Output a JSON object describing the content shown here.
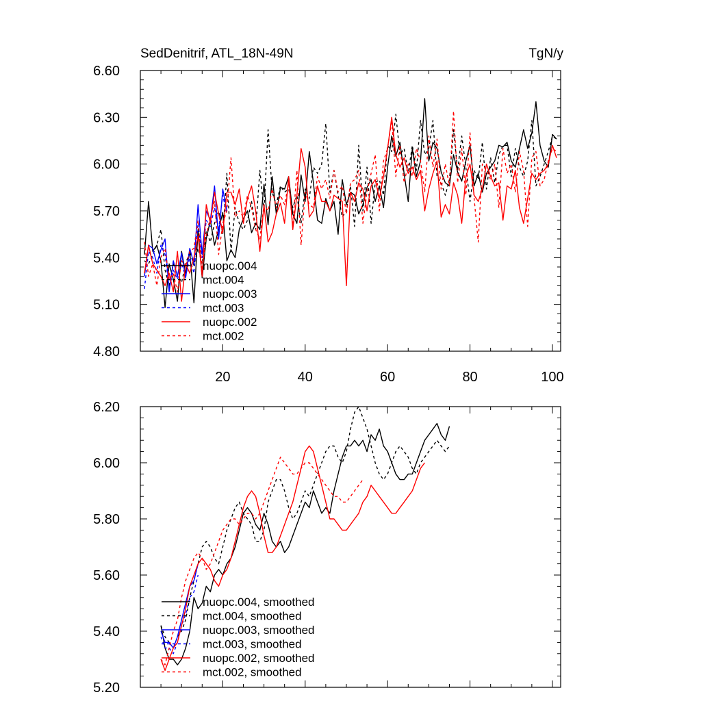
{
  "chart_data": [
    {
      "type": "line",
      "title_left": "SedDenitrif, ATL_18N-49N",
      "title_right": "TgN/y",
      "xlim": [
        0,
        102
      ],
      "ylim": [
        4.8,
        6.6
      ],
      "xticks": [
        20,
        40,
        60,
        80,
        100
      ],
      "xtick_labels": [
        "20",
        "40",
        "60",
        "80",
        "100"
      ],
      "yticks": [
        4.8,
        5.1,
        5.4,
        5.7,
        6.0,
        6.3,
        6.6
      ],
      "ytick_labels": [
        "4.80",
        "5.10",
        "5.40",
        "5.70",
        "6.00",
        "6.30",
        "6.60"
      ],
      "legend_position": "bottom-left",
      "series": [
        {
          "name": "nuopc.004",
          "color": "#000000",
          "dash": "solid",
          "x_start": 1,
          "values": [
            5.42,
            5.76,
            5.44,
            5.48,
            5.38,
            5.08,
            5.36,
            5.26,
            5.12,
            5.44,
            5.3,
            5.44,
            5.11,
            5.58,
            5.27,
            5.52,
            5.64,
            5.48,
            5.58,
            5.69,
            5.38,
            5.45,
            5.4,
            5.58,
            5.65,
            5.7,
            5.56,
            5.62,
            5.58,
            5.87,
            5.61,
            5.92,
            5.68,
            5.85,
            5.84,
            5.92,
            5.68,
            5.62,
            5.93,
            5.76,
            6.08,
            5.88,
            5.64,
            5.62,
            5.78,
            5.7,
            5.76,
            5.55,
            5.9,
            5.74,
            5.82,
            5.8,
            5.68,
            5.74,
            5.85,
            5.9,
            5.76,
            5.86,
            5.72,
            5.98,
            6.18,
            6.05,
            6.14,
            5.94,
            5.76,
            6.1,
            5.92,
            6.02,
            6.42,
            6.02,
            6.14,
            6.1,
            5.95,
            5.88,
            5.86,
            6.06,
            5.95,
            5.89,
            6.02,
            6.12,
            5.86,
            5.94,
            5.82,
            5.94,
            5.98,
            6.02,
            6.12,
            6.11,
            6.14,
            6.02,
            5.98,
            6.1,
            6.22,
            6.1,
            6.2,
            6.4,
            6.12,
            6.02,
            5.98,
            6.19,
            6.16
          ]
        },
        {
          "name": "mct.004",
          "color": "#000000",
          "dash": "4,4",
          "x_start": 1,
          "values": [
            5.38,
            5.36,
            5.42,
            5.48,
            5.58,
            5.32,
            5.22,
            5.36,
            5.28,
            5.24,
            5.36,
            5.44,
            5.35,
            5.46,
            5.36,
            5.57,
            5.5,
            5.62,
            5.7,
            5.55,
            5.94,
            5.44,
            5.72,
            5.62,
            5.58,
            5.64,
            5.76,
            5.58,
            5.96,
            5.7,
            6.22,
            5.82,
            5.74,
            5.86,
            5.82,
            5.84,
            5.72,
            5.8,
            5.62,
            5.84,
            5.78,
            5.98,
            5.94,
            6.0,
            6.26,
            5.82,
            5.96,
            5.8,
            5.66,
            5.7,
            5.86,
            5.6,
            6.12,
            5.7,
            5.98,
            5.62,
            5.88,
            5.9,
            5.8,
            6.12,
            6.08,
            6.32,
            6.06,
            6.1,
            5.94,
            6.12,
            5.96,
            6.28,
            6.06,
            6.1,
            6.28,
            5.92,
            5.88,
            5.8,
            5.9,
            6.22,
            5.96,
            6.18,
            5.98,
            5.76,
            5.96,
            5.9,
            6.14,
            5.84,
            6.04,
            5.88,
            6.06,
            6.12,
            6.12,
            5.92,
            6.1,
            5.98,
            5.92,
            6.02,
            6.28,
            5.86,
            5.92,
            6.0,
            6.08,
            6.18,
            6.16
          ]
        },
        {
          "name": "nuopc.003",
          "color": "#0000ff",
          "dash": "solid",
          "x_start": 1,
          "values": [
            5.28,
            5.48,
            5.46,
            5.36,
            5.45,
            5.52,
            5.18,
            5.38,
            5.28,
            5.43,
            5.27,
            5.46,
            5.36,
            5.74,
            5.42,
            5.7,
            5.64,
            5.86,
            5.52,
            5.84,
            5.7
          ]
        },
        {
          "name": "mct.003",
          "color": "#0000ff",
          "dash": "4,4",
          "x_start": 1,
          "values": [
            5.2,
            5.44,
            5.4,
            5.3,
            5.48,
            5.42,
            5.2,
            5.32,
            5.26,
            5.36,
            5.28,
            5.4,
            5.3,
            5.62,
            5.4,
            5.64,
            5.6,
            5.72,
            5.58,
            5.8,
            5.68
          ]
        },
        {
          "name": "nuopc.002",
          "color": "#ff0000",
          "dash": "solid",
          "x_start": 1,
          "values": [
            5.3,
            5.48,
            5.36,
            5.32,
            5.28,
            5.22,
            5.3,
            5.18,
            5.44,
            5.12,
            5.36,
            5.3,
            5.4,
            5.54,
            5.28,
            5.74,
            5.62,
            5.82,
            5.68,
            5.56,
            5.82,
            5.82,
            5.74,
            5.84,
            5.62,
            5.78,
            5.86,
            5.7,
            5.44,
            5.74,
            5.5,
            5.56,
            5.68,
            5.75,
            5.62,
            5.92,
            5.58,
            5.8,
            6.1,
            5.98,
            5.66,
            5.7,
            5.86,
            5.76,
            5.76,
            5.7,
            5.8,
            5.78,
            5.76,
            5.22,
            5.82,
            5.76,
            5.88,
            5.84,
            5.7,
            5.86,
            5.9,
            5.78,
            5.92,
            6.1,
            6.3,
            6.06,
            5.98,
            6.04,
            5.94,
            5.98,
            5.9,
            5.96,
            5.7,
            5.84,
            5.94,
            6.02,
            5.66,
            5.74,
            5.68,
            5.88,
            5.8,
            5.62,
            5.92,
            6.0,
            5.8,
            5.76,
            5.84,
            6.0,
            5.92,
            5.86,
            5.88,
            5.64,
            5.86,
            5.84,
            5.96,
            5.72,
            5.62,
            5.78,
            5.94,
            5.9,
            5.94,
            5.96,
            6.0,
            6.12,
            6.04
          ]
        },
        {
          "name": "mct.002",
          "color": "#ff0000",
          "dash": "4,4",
          "x_start": 1,
          "values": [
            5.5,
            5.28,
            5.36,
            5.22,
            5.4,
            5.46,
            5.26,
            5.3,
            5.18,
            5.38,
            5.34,
            5.44,
            5.46,
            5.64,
            5.32,
            5.54,
            5.66,
            5.76,
            5.42,
            5.62,
            5.7,
            6.04,
            5.66,
            5.7,
            5.66,
            5.8,
            5.72,
            5.58,
            5.52,
            5.74,
            5.7,
            5.84,
            5.72,
            5.8,
            5.74,
            5.88,
            5.6,
            5.96,
            5.48,
            5.82,
            5.74,
            5.72,
            5.92,
            5.84,
            5.9,
            5.78,
            5.96,
            5.82,
            5.86,
            5.68,
            5.88,
            5.9,
            5.96,
            5.62,
            5.82,
            5.94,
            6.06,
            5.7,
            6.02,
            6.1,
            6.28,
            5.92,
            6.12,
            5.88,
            6.0,
            5.92,
            6.1,
            6.02,
            5.82,
            6.18,
            5.98,
            6.16,
            5.84,
            6.0,
            5.86,
            6.34,
            5.88,
            6.1,
            5.8,
            6.2,
            5.78,
            5.5,
            6.0,
            5.96,
            5.9,
            6.0,
            5.72,
            6.1,
            5.94,
            6.0,
            5.82,
            6.08,
            5.96,
            5.6,
            6.04,
            6.08,
            5.86,
            5.9,
            6.02,
            6.1,
            6.08
          ]
        }
      ]
    },
    {
      "type": "line",
      "xlim": [
        0,
        102
      ],
      "ylim": [
        5.2,
        6.2
      ],
      "yticks": [
        5.2,
        5.4,
        5.6,
        5.8,
        6.0,
        6.2
      ],
      "ytick_labels": [
        "5.20",
        "5.40",
        "5.60",
        "5.80",
        "6.00",
        "6.20"
      ],
      "legend_position": "bottom-left",
      "series": [
        {
          "name": "nuopc.004, smoothed",
          "color": "#000000",
          "dash": "solid",
          "x_start": 5,
          "values": [
            5.42,
            5.34,
            5.3,
            5.3,
            5.28,
            5.3,
            5.34,
            5.4,
            5.52,
            5.48,
            5.5,
            5.56,
            5.54,
            5.6,
            5.62,
            5.6,
            5.64,
            5.66,
            5.7,
            5.76,
            5.82,
            5.84,
            5.82,
            5.78,
            5.76,
            5.82,
            5.78,
            5.72,
            5.7,
            5.72,
            5.68,
            5.7,
            5.74,
            5.78,
            5.82,
            5.86,
            5.84,
            5.9,
            5.86,
            5.82,
            5.84,
            5.82,
            5.9,
            5.96,
            6.02,
            6.06,
            6.06,
            6.08,
            6.06,
            6.08,
            6.04,
            6.1,
            6.08,
            6.12,
            6.06,
            6.04,
            6.0,
            5.96,
            5.94,
            5.94,
            5.96,
            5.96,
            6.0,
            6.04,
            6.08,
            6.1,
            6.12,
            6.14,
            6.1,
            6.08,
            6.13
          ]
        },
        {
          "name": "mct.004, smoothed",
          "color": "#000000",
          "dash": "4,4",
          "x_start": 5,
          "values": [
            5.42,
            5.38,
            5.36,
            5.34,
            5.38,
            5.4,
            5.44,
            5.52,
            5.58,
            5.64,
            5.7,
            5.72,
            5.7,
            5.66,
            5.64,
            5.7,
            5.76,
            5.8,
            5.84,
            5.86,
            5.82,
            5.8,
            5.78,
            5.72,
            5.72,
            5.76,
            5.86,
            5.9,
            5.94,
            5.94,
            5.9,
            5.84,
            5.8,
            5.82,
            5.86,
            5.9,
            5.88,
            5.92,
            5.96,
            6.0,
            6.04,
            6.06,
            6.06,
            6.02,
            6.0,
            6.04,
            6.12,
            6.18,
            6.2,
            6.16,
            6.12,
            6.06,
            6.0,
            5.96,
            5.94,
            5.96,
            6.0,
            6.04,
            6.06,
            6.04,
            6.02,
            5.98,
            5.96,
            6.0,
            6.02,
            6.04,
            6.06,
            6.08,
            6.06,
            6.04,
            6.06
          ]
        },
        {
          "name": "nuopc.003, smoothed",
          "color": "#0000ff",
          "dash": "solid",
          "x_start": 5,
          "values": [
            5.4,
            5.36,
            5.36,
            5.34,
            5.38,
            5.44,
            5.5,
            5.56,
            5.58,
            5.64
          ]
        },
        {
          "name": "mct.003, smoothed",
          "color": "#0000ff",
          "dash": "4,4",
          "x_start": 5,
          "values": [
            5.38,
            5.34,
            5.34,
            5.32,
            5.36,
            5.42,
            5.46,
            5.52,
            5.54,
            5.6
          ]
        },
        {
          "name": "nuopc.002, smoothed",
          "color": "#ff0000",
          "dash": "solid",
          "x_start": 5,
          "values": [
            5.3,
            5.26,
            5.3,
            5.34,
            5.36,
            5.42,
            5.48,
            5.56,
            5.6,
            5.64,
            5.66,
            5.64,
            5.62,
            5.58,
            5.56,
            5.6,
            5.62,
            5.66,
            5.72,
            5.78,
            5.84,
            5.88,
            5.9,
            5.88,
            5.82,
            5.74,
            5.68,
            5.68,
            5.7,
            5.74,
            5.78,
            5.82,
            5.86,
            5.92,
            5.98,
            6.04,
            6.06,
            6.04,
            5.98,
            5.92,
            5.86,
            5.8,
            5.8,
            5.78,
            5.76,
            5.76,
            5.78,
            5.8,
            5.82,
            5.86,
            5.88,
            5.92,
            5.9,
            5.88,
            5.86,
            5.84,
            5.82,
            5.82,
            5.84,
            5.86,
            5.88,
            5.9,
            5.94,
            5.98,
            6.0
          ]
        },
        {
          "name": "mct.002, smoothed",
          "color": "#ff0000",
          "dash": "4,4",
          "x_start": 5,
          "values": [
            5.3,
            5.28,
            5.34,
            5.4,
            5.44,
            5.52,
            5.58,
            5.62,
            5.66,
            5.68,
            5.66,
            5.62,
            5.64,
            5.68,
            5.72,
            5.76,
            5.78,
            5.8,
            5.8,
            5.78,
            5.8,
            5.82,
            5.82,
            5.8,
            5.82,
            5.86,
            5.9,
            5.94,
            5.98,
            6.02,
            6.0,
            5.98,
            5.96,
            5.96,
            5.98,
            6.0,
            6.0,
            5.98,
            5.96,
            5.94,
            5.92,
            5.9,
            5.88,
            5.88,
            5.86,
            5.86,
            5.88,
            5.9,
            5.92,
            5.94
          ]
        }
      ]
    }
  ]
}
